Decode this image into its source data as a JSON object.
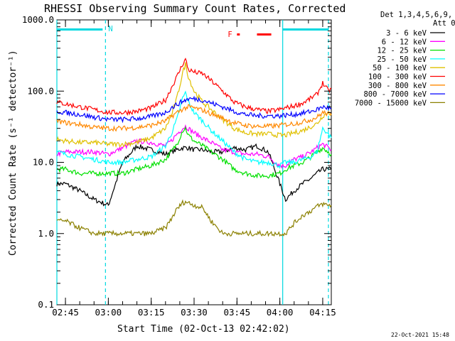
{
  "chart_data": {
    "type": "line",
    "title": "RHESSI Observing Summary Count Rates, Corrected",
    "xlabel": "Start Time (02-Oct-13 02:42:02)",
    "ylabel": "Corrected Count Rate (s⁻¹ detector⁻¹)",
    "yscale": "log",
    "ylim": [
      0.1,
      1000
    ],
    "xlim_minutes_after_start": [
      0,
      96
    ],
    "x_ticks": [
      "02:45",
      "03:00",
      "03:15",
      "03:30",
      "03:45",
      "04:00",
      "04:15"
    ],
    "y_ticks": [
      "1000.0",
      "100.0",
      "10.0",
      "1.0",
      "0.1"
    ],
    "grid": false,
    "legend_position": "right",
    "legend_header": [
      "Det 1,3,4,5,6,9,",
      "Att 0"
    ],
    "timestamp": "22-Oct-2021 15:48",
    "flags": {
      "night_label": "N",
      "flare_label": "F"
    },
    "x_times": [
      "02:42",
      "02:45",
      "02:50",
      "02:55",
      "03:00",
      "03:05",
      "03:10",
      "03:15",
      "03:20",
      "03:22",
      "03:24",
      "03:26",
      "03:27",
      "03:28",
      "03:30",
      "03:33",
      "03:36",
      "03:40",
      "03:44",
      "03:48",
      "03:52",
      "03:56",
      "04:00",
      "04:02",
      "04:05",
      "04:08",
      "04:11",
      "04:13",
      "04:15",
      "04:17",
      "04:18"
    ],
    "series": [
      {
        "name": "3 - 6 keV",
        "color": "#000000",
        "values": [
          5,
          5,
          4,
          3,
          2.5,
          10,
          17,
          15,
          13,
          14,
          15,
          16,
          16,
          16,
          15,
          15,
          14,
          14,
          16,
          15,
          17,
          14,
          5,
          3,
          4,
          5,
          6,
          7,
          8,
          8,
          8
        ]
      },
      {
        "name": "6 - 12 keV",
        "color": "#ff00ff",
        "values": [
          13,
          14,
          14,
          14,
          13,
          16,
          20,
          19,
          17,
          20,
          25,
          30,
          32,
          30,
          26,
          22,
          19,
          15,
          14,
          13,
          13,
          12,
          9,
          9,
          11,
          12,
          14,
          16,
          18,
          16,
          15
        ]
      },
      {
        "name": "12 - 25 keV",
        "color": "#00e000",
        "values": [
          8,
          8,
          7,
          7,
          7,
          7,
          8,
          9,
          11,
          14,
          18,
          28,
          30,
          24,
          20,
          17,
          14,
          11,
          8,
          7,
          6.5,
          6.5,
          7,
          8,
          9,
          10,
          12,
          14,
          16,
          14,
          13
        ]
      },
      {
        "name": "25 - 50 keV",
        "color": "#00ffff",
        "values": [
          14,
          13,
          12,
          11,
          10,
          10,
          11,
          12,
          17,
          25,
          40,
          80,
          95,
          70,
          50,
          38,
          28,
          20,
          14,
          11,
          10,
          10,
          9,
          10,
          10,
          11,
          12,
          14,
          30,
          25,
          22
        ]
      },
      {
        "name": "50 - 100 keV",
        "color": "#e0c000",
        "values": [
          21,
          20,
          19,
          19,
          18,
          18,
          19,
          22,
          30,
          45,
          80,
          180,
          240,
          160,
          100,
          70,
          55,
          40,
          30,
          26,
          25,
          25,
          24,
          24,
          26,
          28,
          32,
          35,
          45,
          50,
          48
        ]
      },
      {
        "name": "100 - 300 keV",
        "color": "#ff0000",
        "values": [
          70,
          66,
          60,
          55,
          50,
          50,
          52,
          58,
          75,
          110,
          160,
          240,
          280,
          200,
          185,
          175,
          140,
          100,
          70,
          60,
          55,
          52,
          55,
          58,
          62,
          68,
          80,
          90,
          130,
          100,
          110
        ]
      },
      {
        "name": "300 - 800 keV",
        "color": "#ff8800",
        "values": [
          38,
          36,
          34,
          31,
          30,
          30,
          31,
          33,
          38,
          44,
          50,
          56,
          58,
          60,
          58,
          54,
          48,
          42,
          36,
          33,
          32,
          32,
          33,
          34,
          35,
          37,
          40,
          43,
          50,
          48,
          46
        ]
      },
      {
        "name": "800 - 7000 keV",
        "color": "#0000ff",
        "values": [
          52,
          50,
          47,
          43,
          40,
          40,
          41,
          44,
          50,
          58,
          65,
          72,
          75,
          78,
          78,
          75,
          68,
          60,
          52,
          47,
          45,
          45,
          45,
          46,
          47,
          49,
          52,
          55,
          60,
          58,
          57
        ]
      },
      {
        "name": "7000 - 15000 keV",
        "color": "#8b8000",
        "values": [
          1.5,
          1.5,
          1.2,
          1.0,
          1.0,
          1.0,
          1.0,
          1.0,
          1.2,
          1.6,
          2.2,
          2.7,
          2.8,
          2.7,
          2.5,
          2.3,
          1.5,
          1.0,
          1.0,
          1.0,
          1.0,
          1.0,
          1.0,
          1.0,
          1.4,
          1.8,
          2.1,
          2.4,
          2.6,
          2.5,
          2.5
        ]
      }
    ],
    "vertical_markers": [
      {
        "time": "02:42",
        "style": "solid",
        "color": "#00d8e0"
      },
      {
        "time": "02:59",
        "style": "dashed",
        "color": "#00d8e0"
      },
      {
        "time": "04:01",
        "style": "solid",
        "color": "#00d8e0"
      },
      {
        "time": "04:17",
        "style": "dashed",
        "color": "#00d8e0"
      }
    ],
    "night_bars": [
      {
        "start": "02:42",
        "end": "02:58"
      },
      {
        "start": "04:01",
        "end": "04:17"
      }
    ],
    "flare_bars": [
      {
        "start": "03:45",
        "end": "03:46"
      },
      {
        "start": "03:52",
        "end": "03:57"
      }
    ]
  }
}
